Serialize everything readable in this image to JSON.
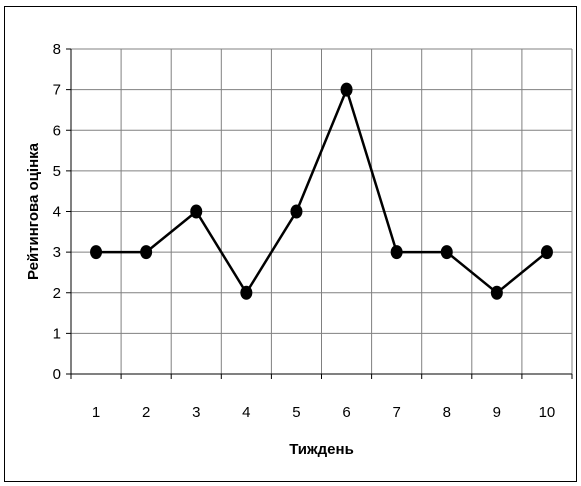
{
  "chart_data": {
    "type": "line",
    "title": "",
    "xlabel": "Тиждень",
    "ylabel": "Рейтингова оцінка",
    "categories": [
      "1",
      "2",
      "3",
      "4",
      "5",
      "6",
      "7",
      "8",
      "9",
      "10"
    ],
    "series": [
      {
        "values": [
          3,
          3,
          4,
          2,
          4,
          7,
          3,
          3,
          2,
          3
        ]
      }
    ],
    "ylim": [
      0,
      8
    ],
    "yticks": [
      0,
      1,
      2,
      3,
      4,
      5,
      6,
      7,
      8
    ],
    "grid": true,
    "legend": "none",
    "colors": {
      "line": "#000000",
      "marker": "#000000",
      "grid": "#808080",
      "axis": "#000000"
    }
  }
}
